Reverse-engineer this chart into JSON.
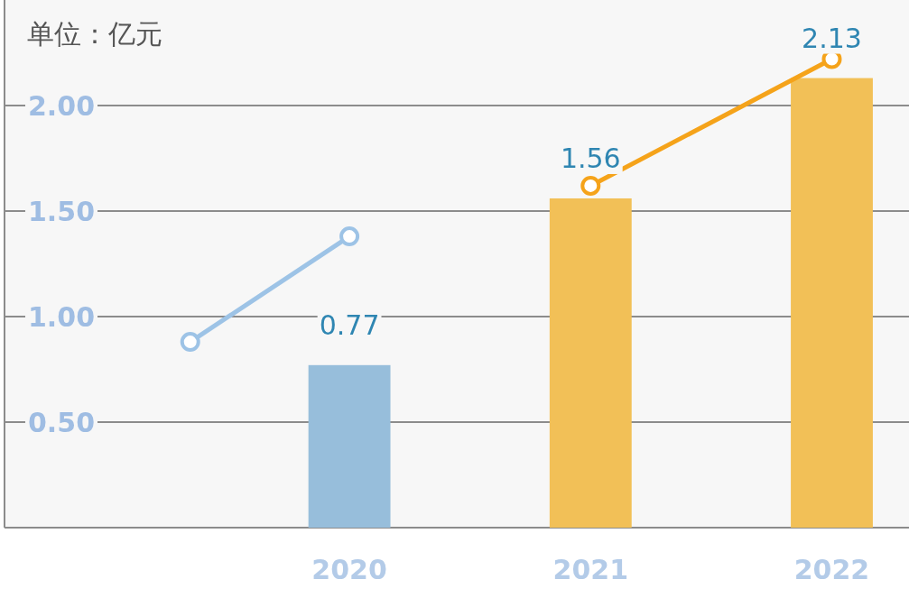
{
  "chart_data": {
    "type": "bar",
    "ylabel": "单位：亿元",
    "x": [
      2020,
      2021,
      2022
    ],
    "xlim": [
      2018.57,
      2022.32
    ],
    "xticks": [
      2020,
      2021,
      2022
    ],
    "ylim": [
      0,
      2.5
    ],
    "yticks": [
      {
        "value": 0.5,
        "label": "0.50"
      },
      {
        "value": 1,
        "label": "1.00"
      },
      {
        "value": 1.5,
        "label": "1.50"
      },
      {
        "value": 2,
        "label": "2.00"
      }
    ],
    "grid": "y",
    "series": [
      {
        "colors": [
          "#97bedb",
          "#f2c057",
          "#f2c057"
        ],
        "values": [
          0.77,
          1.56,
          2.13
        ],
        "value_labels": [
          "0.77",
          "1.56",
          "2.13"
        ]
      },
      {
        "type": "line",
        "color": "#9dc3e6",
        "marker": "circle",
        "x": [
          2019.34,
          2020
        ],
        "values": [
          0.88,
          1.38
        ]
      },
      {
        "type": "line",
        "color": "#f5a31a",
        "marker": "circle",
        "x": [
          2021,
          2022
        ],
        "values": [
          1.62,
          2.22
        ]
      }
    ]
  }
}
